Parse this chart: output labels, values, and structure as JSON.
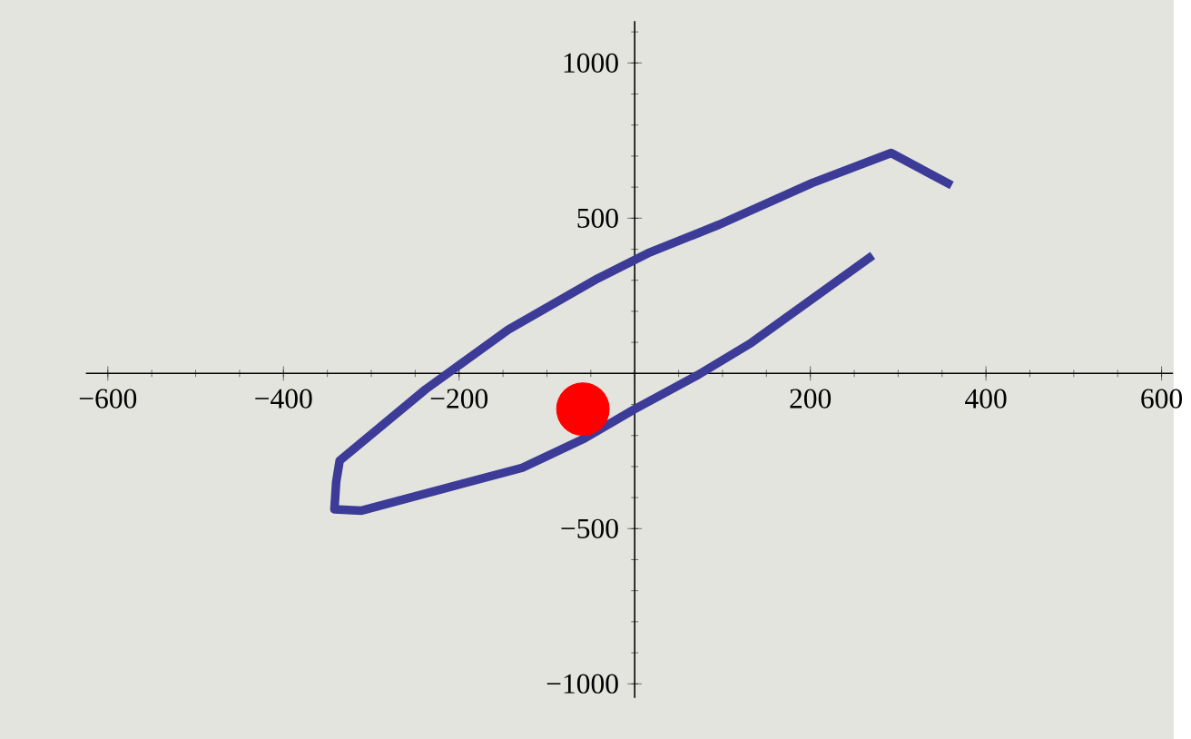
{
  "chart_data": {
    "type": "line",
    "xlim": [
      -625,
      613
    ],
    "ylim": [
      -1045,
      1135
    ],
    "xticks": [
      {
        "value": -600,
        "label": "−600"
      },
      {
        "value": -400,
        "label": "−400"
      },
      {
        "value": -200,
        "label": "−200"
      },
      200,
      400,
      600
    ],
    "yticks": [
      {
        "value": -1000,
        "label": "−1000"
      },
      {
        "value": -500,
        "label": "−500"
      },
      500,
      1000
    ],
    "marker": "none",
    "series": [
      {
        "color": "#3c3c98",
        "x": [
          271,
          133,
          72,
          0,
          -59,
          -128,
          -311,
          -342,
          -340,
          -336,
          -238,
          -144,
          -42,
          15,
          96,
          202,
          292,
          361
        ],
        "values": [
          380,
          99,
          -5,
          -115,
          -212,
          -304,
          -442,
          -438,
          -350,
          -281,
          -51,
          141,
          306,
          387,
          479,
          613,
          710,
          606
        ]
      },
      {
        "type": "scatter",
        "marker": "circle",
        "color": "#ff0000",
        "x": [
          -59
        ],
        "values": [
          -115
        ]
      }
    ]
  }
}
